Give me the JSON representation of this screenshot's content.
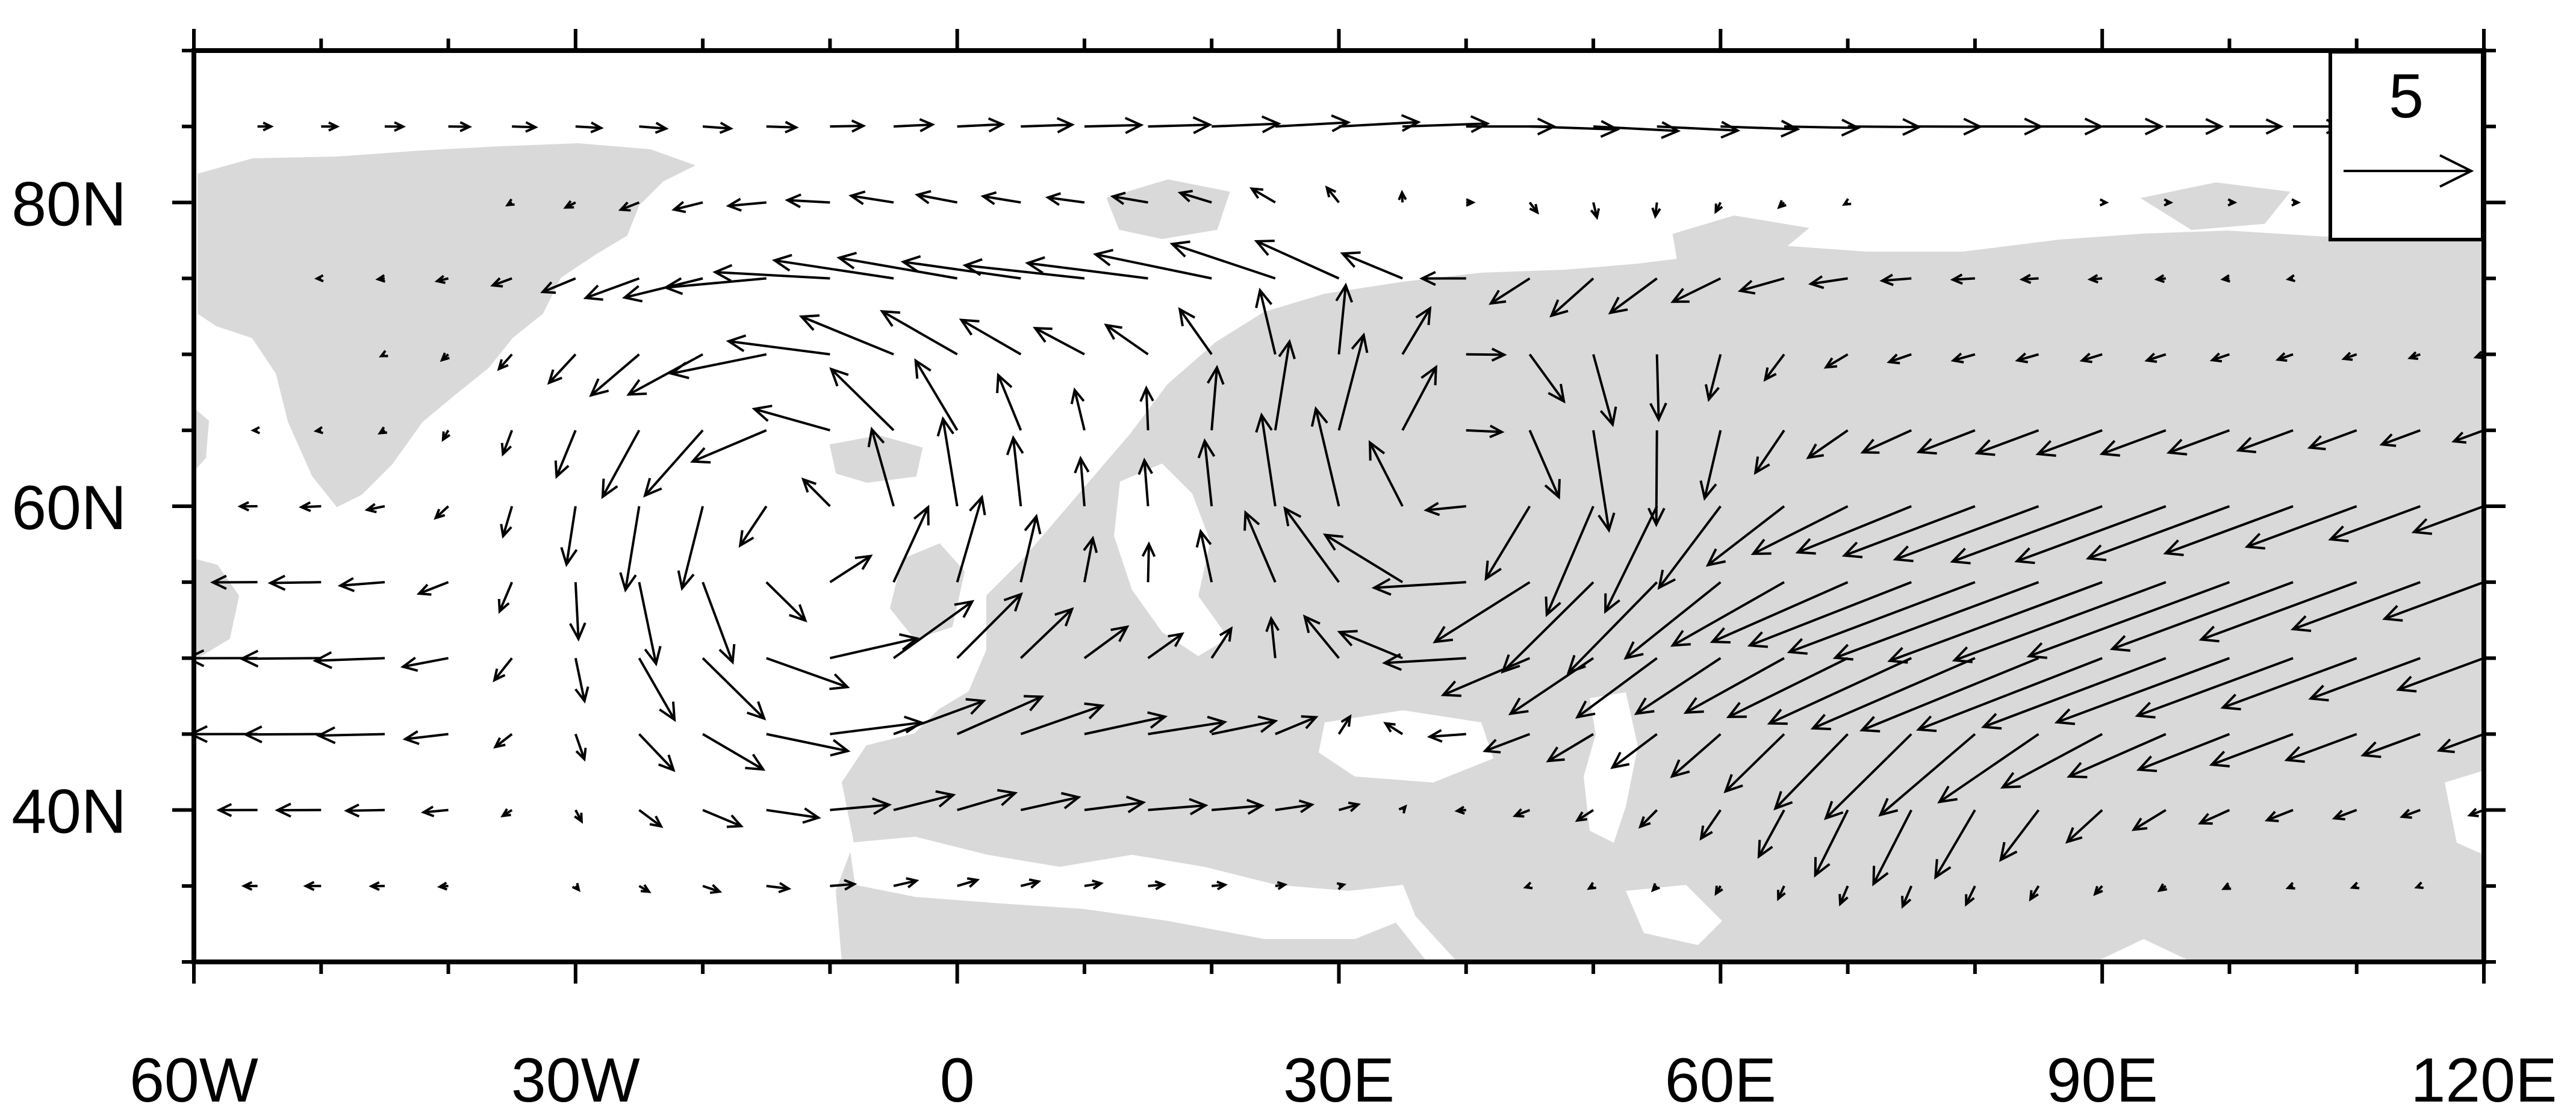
{
  "map": {
    "x_ticks": [
      {
        "lon": -60,
        "label": "60W"
      },
      {
        "lon": -30,
        "label": "30W"
      },
      {
        "lon": 0,
        "label": "0"
      },
      {
        "lon": 30,
        "label": "30E"
      },
      {
        "lon": 60,
        "label": "60E"
      },
      {
        "lon": 90,
        "label": "90E"
      },
      {
        "lon": 120,
        "label": "120E"
      }
    ],
    "y_ticks": [
      {
        "lat": 80,
        "label": "80N"
      },
      {
        "lat": 60,
        "label": "60N"
      },
      {
        "lat": 40,
        "label": "40N"
      }
    ],
    "lon_range": [
      -60,
      120
    ],
    "lat_range": [
      30,
      90
    ],
    "reference_vector": {
      "label": "5",
      "magnitude": 5
    },
    "colors": {
      "land": "#d9d9d9",
      "ocean": "#ffffff",
      "vector": "#000000",
      "frame": "#000000"
    }
  }
}
